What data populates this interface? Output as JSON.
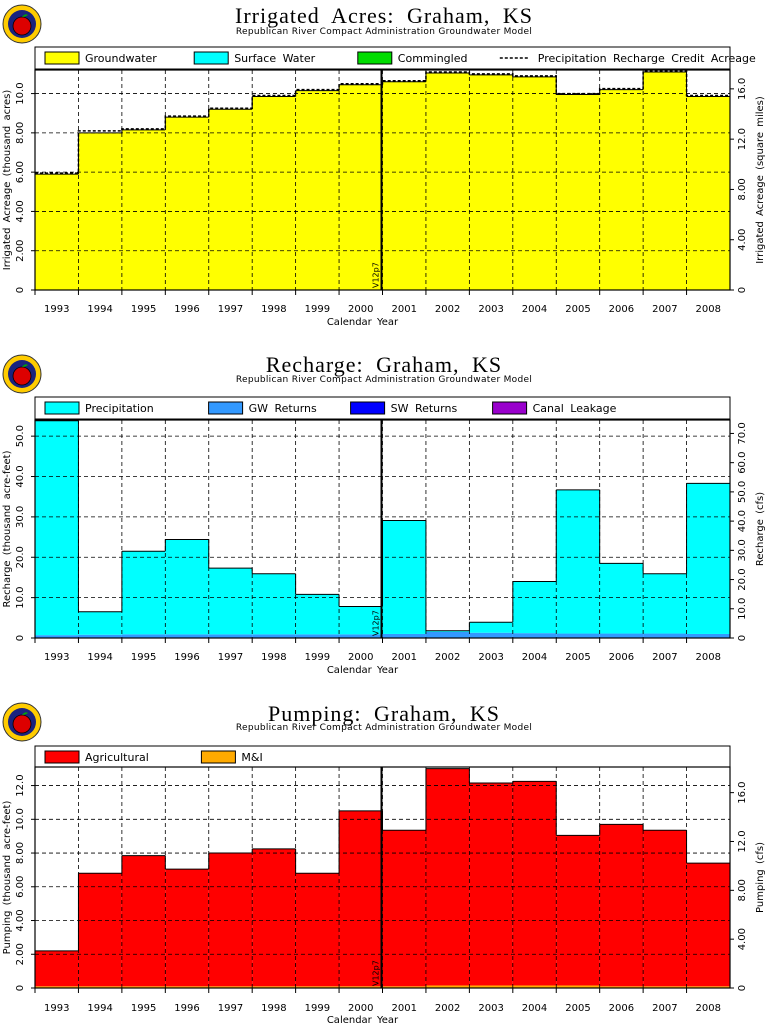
{
  "chart_data": [
    {
      "type": "bar",
      "title": "Irrigated Acres: Graham, KS",
      "subtitle": "Republican River Compact Administration Groundwater Model",
      "xlabel": "Calendar Year",
      "ylabel": "Irrigated Acreage (thousand acres)",
      "y2label": "Irrigated Acreage (square miles)",
      "categories": [
        "1993",
        "1994",
        "1995",
        "1996",
        "1997",
        "1998",
        "1999",
        "2000",
        "2001",
        "2002",
        "2003",
        "2004",
        "2005",
        "2006",
        "2007",
        "2008"
      ],
      "ylim": [
        0,
        11.2
      ],
      "yticks": [
        "0",
        "2.00",
        "4.00",
        "6.00",
        "8.00",
        "10.0"
      ],
      "y2lim": [
        0,
        17.5
      ],
      "y2ticks": [
        "0",
        "4.00",
        "8.00",
        "12.0",
        "16.0"
      ],
      "stacked": true,
      "series": [
        {
          "name": "Groundwater",
          "color": "#ffff00",
          "values": [
            5.9,
            8.0,
            8.15,
            8.8,
            9.2,
            9.85,
            10.15,
            10.45,
            10.6,
            11.05,
            10.95,
            10.85,
            9.95,
            10.2,
            11.1,
            9.85
          ]
        },
        {
          "name": "Surface Water",
          "color": "#00ffff",
          "values": [
            0,
            0,
            0,
            0,
            0,
            0,
            0,
            0,
            0,
            0,
            0,
            0,
            0,
            0,
            0,
            0
          ]
        },
        {
          "name": "Commingled",
          "color": "#00dd00",
          "values": [
            0,
            0,
            0,
            0,
            0,
            0,
            0,
            0,
            0,
            0,
            0,
            0,
            0,
            0,
            0,
            0
          ]
        }
      ],
      "line_series": {
        "name": "Precipitation Recharge Credit Acreage",
        "style": "dashed",
        "values": [
          5.95,
          8.1,
          8.2,
          8.85,
          9.25,
          9.9,
          10.2,
          10.5,
          10.65,
          11.1,
          11.0,
          10.9,
          10.0,
          10.25,
          11.15,
          9.9
        ]
      },
      "marker_label": "V12p7",
      "marker_after": "2000",
      "legend_position": "top",
      "grid": true
    },
    {
      "type": "bar",
      "title": "Recharge: Graham, KS",
      "subtitle": "Republican River Compact Administration Groundwater Model",
      "xlabel": "Calendar Year",
      "ylabel": "Recharge (thousand acre-feet)",
      "y2label": "Recharge (cfs)",
      "categories": [
        "1993",
        "1994",
        "1995",
        "1996",
        "1997",
        "1998",
        "1999",
        "2000",
        "2001",
        "2002",
        "2003",
        "2004",
        "2005",
        "2006",
        "2007",
        "2008"
      ],
      "ylim": [
        0,
        54
      ],
      "yticks": [
        "0",
        "10.0",
        "20.0",
        "30.0",
        "40.0",
        "50.0"
      ],
      "y2lim": [
        0,
        74.6
      ],
      "y2ticks": [
        "0",
        "10.0",
        "20.0",
        "30.0",
        "40.0",
        "50.0",
        "60.0",
        "70.0"
      ],
      "stacked": true,
      "series": [
        {
          "name": "GW Returns",
          "color": "#3399ff",
          "values": [
            0.7,
            0.8,
            0.9,
            0.9,
            0.9,
            0.9,
            0.9,
            0.9,
            1.0,
            1.5,
            1.3,
            1.2,
            1.1,
            1.1,
            1.1,
            1.0
          ]
        },
        {
          "name": "SW Returns",
          "color": "#0000ff",
          "values": [
            0,
            0,
            0,
            0,
            0,
            0,
            0,
            0,
            0,
            0,
            0,
            0,
            0,
            0,
            0,
            0
          ]
        },
        {
          "name": "Canal Leakage",
          "color": "#9900cc",
          "values": [
            0,
            0,
            0,
            0,
            0,
            0,
            0,
            0,
            0,
            0,
            0,
            0,
            0,
            0,
            0,
            0
          ]
        },
        {
          "name": "Precipitation",
          "color": "#00ffff",
          "values": [
            53.1,
            5.7,
            20.6,
            23.5,
            16.4,
            15.0,
            9.9,
            6.9,
            28.1,
            0.3,
            2.6,
            12.8,
            35.6,
            17.4,
            14.8,
            37.3
          ]
        }
      ],
      "marker_label": "V12p7",
      "marker_after": "2000",
      "legend_position": "top",
      "grid": true
    },
    {
      "type": "bar",
      "title": "Pumping: Graham, KS",
      "subtitle": "Republican River Compact Administration Groundwater Model",
      "xlabel": "Calendar Year",
      "ylabel": "Pumping (thousand acre-feet)",
      "y2label": "Pumping (cfs)",
      "categories": [
        "1993",
        "1994",
        "1995",
        "1996",
        "1997",
        "1998",
        "1999",
        "2000",
        "2001",
        "2002",
        "2003",
        "2004",
        "2005",
        "2006",
        "2007",
        "2008"
      ],
      "ylim": [
        0,
        13.1
      ],
      "yticks": [
        "0",
        "2.00",
        "4.00",
        "6.00",
        "8.00",
        "10.0",
        "12.0"
      ],
      "y2lim": [
        0,
        18.1
      ],
      "y2ticks": [
        "0",
        "4.00",
        "8.00",
        "12.0",
        "16.0"
      ],
      "stacked": true,
      "series": [
        {
          "name": "M&I",
          "color": "#ffaa00",
          "values": [
            0.1,
            0.1,
            0.1,
            0.1,
            0.1,
            0.1,
            0.1,
            0.1,
            0.1,
            0.15,
            0.15,
            0.15,
            0.15,
            0.1,
            0.1,
            0.1
          ]
        },
        {
          "name": "Agricultural",
          "color": "#ff0000",
          "values": [
            2.1,
            6.7,
            7.75,
            6.95,
            7.9,
            8.15,
            6.7,
            10.4,
            9.25,
            12.85,
            12.0,
            12.1,
            8.9,
            9.6,
            9.25,
            7.3
          ]
        }
      ],
      "legend_order": [
        "Agricultural",
        "M&I"
      ],
      "marker_label": "V12p7",
      "marker_after": "2000",
      "legend_position": "top",
      "grid": true
    }
  ]
}
